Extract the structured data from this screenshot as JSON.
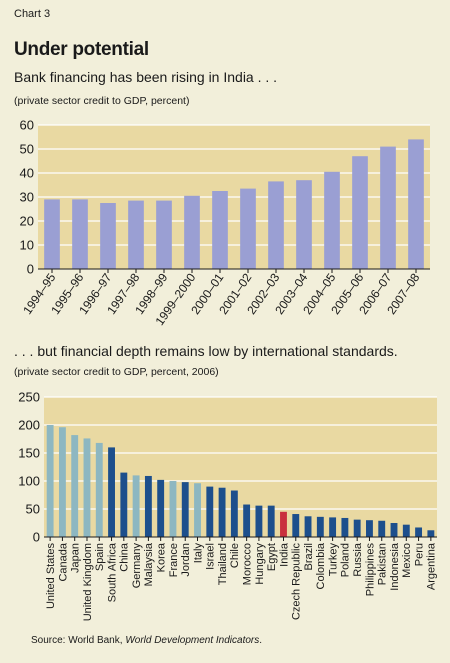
{
  "header": {
    "chart_label": "Chart 3",
    "title": "Under potential"
  },
  "source": {
    "prefix": "Source: World Bank, ",
    "publication": "World Development Indicators",
    "suffix": "."
  },
  "colors": {
    "background": "#f2efda",
    "plot_area": "#e9d9a2",
    "bar_periwinkle": "#9a9fd3",
    "bar_dark_blue": "#1d4f8c",
    "bar_light_teal": "#8db7c1",
    "bar_highlight_red": "#c9303d"
  },
  "chart_data": [
    {
      "type": "bar",
      "subtitle": "Bank financing has been rising in India . . .",
      "note": "(private sector credit to GDP, percent)",
      "categories": [
        "1994–95",
        "1995–96",
        "1996–97",
        "1997–98",
        "1998–99",
        "1999–2000",
        "2000–01",
        "2001–02",
        "2002–03",
        "2003–04",
        "2004–05",
        "2005–06",
        "2006–07",
        "2007–08"
      ],
      "values": [
        29,
        29,
        27.5,
        28.5,
        28.5,
        30.5,
        32.5,
        33.5,
        36.5,
        37,
        40.5,
        47,
        51,
        54
      ],
      "ylim": [
        0,
        60
      ],
      "yticks": [
        0,
        10,
        20,
        30,
        40,
        50,
        60
      ],
      "grid": true,
      "bar_color": "#9a9fd3"
    },
    {
      "type": "bar",
      "subtitle": ". . . but financial depth remains low by international standards.",
      "note": "(private sector credit to GDP, percent, 2006)",
      "categories": [
        "United States",
        "Canada",
        "Japan",
        "United Kingdom",
        "Spain",
        "South Africa",
        "China",
        "Germany",
        "Malaysia",
        "Korea",
        "France",
        "Jordan",
        "Italy",
        "Israel",
        "Thailand",
        "Chile",
        "Morocco",
        "Hungary",
        "Egypt",
        "India",
        "Czech Republic",
        "Brazil",
        "Colombia",
        "Turkey",
        "Poland",
        "Russia",
        "Philippines",
        "Pakistan",
        "Indonesia",
        "Mexico",
        "Peru",
        "Argentina"
      ],
      "values": [
        200,
        196,
        182,
        176,
        168,
        160,
        115,
        110,
        109,
        102,
        100,
        98,
        96,
        90,
        88,
        83,
        58,
        56,
        56,
        45,
        41,
        37,
        36,
        35,
        34,
        31,
        30,
        29,
        25,
        22,
        17,
        12
      ],
      "bar_colors": [
        "#8db7c1",
        "#8db7c1",
        "#8db7c1",
        "#8db7c1",
        "#8db7c1",
        "#1d4f8c",
        "#1d4f8c",
        "#8db7c1",
        "#1d4f8c",
        "#1d4f8c",
        "#8db7c1",
        "#1d4f8c",
        "#8db7c1",
        "#1d4f8c",
        "#1d4f8c",
        "#1d4f8c",
        "#1d4f8c",
        "#1d4f8c",
        "#1d4f8c",
        "#c9303d",
        "#1d4f8c",
        "#1d4f8c",
        "#1d4f8c",
        "#1d4f8c",
        "#1d4f8c",
        "#1d4f8c",
        "#1d4f8c",
        "#1d4f8c",
        "#1d4f8c",
        "#1d4f8c",
        "#1d4f8c",
        "#1d4f8c"
      ],
      "ylim": [
        0,
        250
      ],
      "yticks": [
        0,
        50,
        100,
        150,
        200,
        250
      ],
      "grid": true
    }
  ]
}
